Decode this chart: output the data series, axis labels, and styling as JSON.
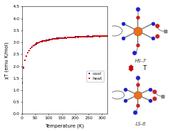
{
  "xlabel": "Temperature (K)",
  "ylabel": "χT (emu K/mol)",
  "xlim": [
    0,
    320
  ],
  "ylim": [
    0.0,
    4.5
  ],
  "xticks": [
    0,
    50,
    100,
    150,
    200,
    250,
    300
  ],
  "yticks": [
    0.0,
    0.5,
    1.0,
    1.5,
    2.0,
    2.5,
    3.0,
    3.5,
    4.0,
    4.5
  ],
  "heat_color": "#cc0000",
  "cool_color": "#0000cc",
  "legend_heat": "heat",
  "legend_cool": "cool",
  "bg_color": "#ffffff",
  "plot_bg": "#ffffff",
  "label_fontsize": 5,
  "tick_fontsize": 4.5,
  "legend_fontsize": 4.5,
  "marker_size": 1.8,
  "line_width": 0.6,
  "T_min": 2,
  "T_max": 320,
  "chi_sat": 3.35,
  "n_points": 65,
  "label_HS": "HS-7",
  "label_LS": "LS-6",
  "arrow_color": "#cc0000",
  "T_label": "T"
}
